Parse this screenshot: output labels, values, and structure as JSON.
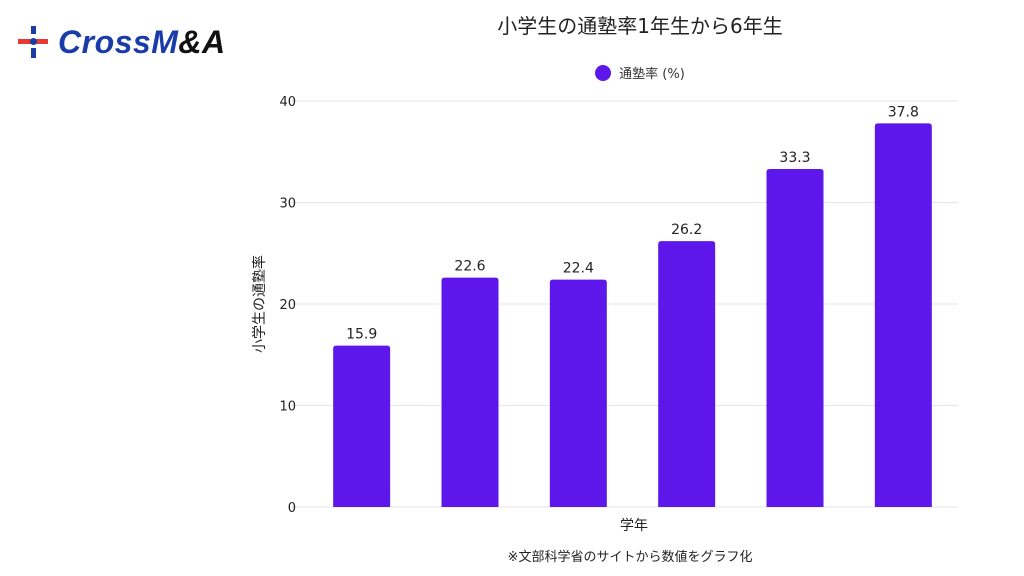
{
  "logo": {
    "text_blue": "CrossM",
    "text_dark": "&A"
  },
  "colors": {
    "bar": "#5e17eb",
    "grid": "#e6e6e6",
    "text": "#222222"
  },
  "source_note": "※文部科学省のサイトから数値をグラフ化",
  "chart_data": {
    "type": "bar",
    "title": "小学生の通塾率1年生から6年生",
    "xlabel": "学年",
    "ylabel": "小学生の通塾率",
    "categories": [
      "",
      "",
      "",
      "",
      "",
      ""
    ],
    "series": [
      {
        "name": "通塾率 (%)",
        "values": [
          15.9,
          22.6,
          22.4,
          26.2,
          33.3,
          37.8
        ]
      }
    ],
    "data_labels": [
      "15.9",
      "22.6",
      "22.4",
      "26.2",
      "33.3",
      "37.8"
    ],
    "ylim": [
      0,
      40
    ],
    "yticks": [
      0,
      10,
      20,
      30,
      40
    ],
    "ytick_labels": [
      "0",
      "10",
      "20",
      "30",
      "40"
    ],
    "grid": true,
    "legend_position": "top-center"
  }
}
